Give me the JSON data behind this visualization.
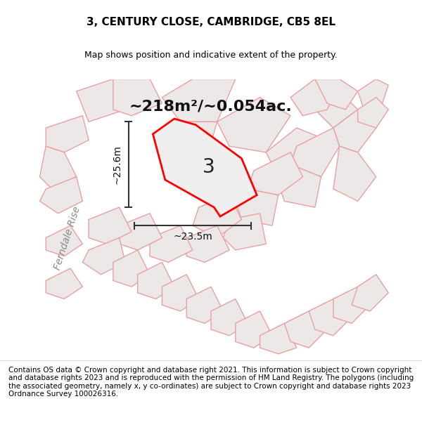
{
  "title": "3, CENTURY CLOSE, CAMBRIDGE, CB5 8EL",
  "subtitle": "Map shows position and indicative extent of the property.",
  "area_label": "~218m²/~0.054ac.",
  "plot_number": "3",
  "dim_width": "~23.5m",
  "dim_height": "~25.6m",
  "street_label": "Ferndale Rise",
  "footer": "Contains OS data © Crown copyright and database right 2021. This information is subject to Crown copyright and database rights 2023 and is reproduced with the permission of HM Land Registry. The polygons (including the associated geometry, namely x, y co-ordinates) are subject to Crown copyright and database rights 2023 Ordnance Survey 100026316.",
  "bg_color": "#f5f0f0",
  "map_bg": "#f8f4f4",
  "plot_fill": "#e8e8e8",
  "plot_edge": "#ff0000",
  "other_plot_fill": "#e0dede",
  "other_plot_edge": "#f0a0a0",
  "dim_line_color": "#333333",
  "title_fontsize": 11,
  "subtitle_fontsize": 9,
  "area_fontsize": 16,
  "plot_num_fontsize": 20,
  "dim_fontsize": 10,
  "street_fontsize": 10,
  "footer_fontsize": 7.5
}
